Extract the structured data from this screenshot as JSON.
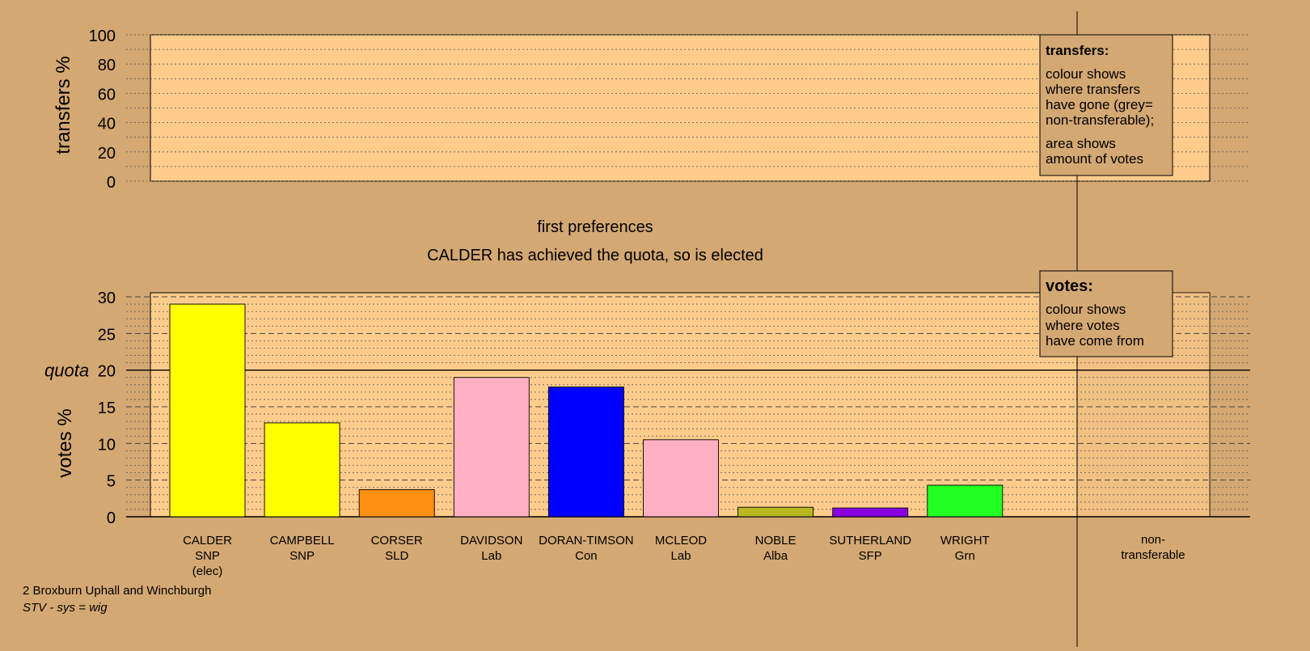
{
  "colors": {
    "background": "#D4A873",
    "plot_background": "#FFCC8C",
    "nontransferable_background": "#D4A873"
  },
  "transfers_panel": {
    "ylabel": "transfers %",
    "legend_title": "transfers:",
    "legend_lines_1": [
      "colour shows",
      "where transfers",
      "have gone (grey=",
      "non-transferable);"
    ],
    "legend_lines_2": [
      "area shows",
      "amount of votes"
    ]
  },
  "stage_title": "first preferences",
  "stage_subtitle": "CALDER has achieved the quota, so is elected",
  "votes_panel": {
    "ylabel": "votes %",
    "quota_label": "quota",
    "legend_title": "votes:",
    "legend_lines": [
      "colour shows",
      "where votes",
      "have come from"
    ]
  },
  "footer": {
    "ward": "2 Broxburn Uphall and Winchburgh",
    "system": "STV - sys = wig"
  },
  "chart_data": [
    {
      "type": "bar",
      "panel": "transfers",
      "ylabel": "transfers %",
      "ylim": [
        0,
        100
      ],
      "yticks": [
        0,
        20,
        40,
        60,
        80,
        100
      ],
      "values": []
    },
    {
      "type": "bar",
      "panel": "votes",
      "ylabel": "votes %",
      "ylim": [
        0,
        30
      ],
      "yticks": [
        0,
        5,
        10,
        15,
        20,
        25,
        30
      ],
      "quota": 20,
      "categories": [
        {
          "name": "CALDER",
          "party": "SNP",
          "note": "(elec)",
          "value": 29.0,
          "color": "#FFFF00"
        },
        {
          "name": "CAMPBELL",
          "party": "SNP",
          "note": "",
          "value": 12.8,
          "color": "#FFFF00"
        },
        {
          "name": "CORSER",
          "party": "SLD",
          "note": "",
          "value": 3.7,
          "color": "#FF9010"
        },
        {
          "name": "DAVIDSON",
          "party": "Lab",
          "note": "",
          "value": 19.0,
          "color": "#FFB0C0"
        },
        {
          "name": "DORAN-TIMSON",
          "party": "Con",
          "note": "",
          "value": 17.7,
          "color": "#0000FF"
        },
        {
          "name": "MCLEOD",
          "party": "Lab",
          "note": "",
          "value": 10.5,
          "color": "#FFB0C0"
        },
        {
          "name": "NOBLE",
          "party": "Alba",
          "note": "",
          "value": 1.3,
          "color": "#B8B820"
        },
        {
          "name": "SUTHERLAND",
          "party": "SFP",
          "note": "",
          "value": 1.2,
          "color": "#8800E0"
        },
        {
          "name": "WRIGHT",
          "party": "Grn",
          "note": "",
          "value": 4.3,
          "color": "#22FF22"
        }
      ],
      "nontransferable_label": [
        "non-",
        "transferable"
      ],
      "nontransferable_value": 0
    }
  ]
}
